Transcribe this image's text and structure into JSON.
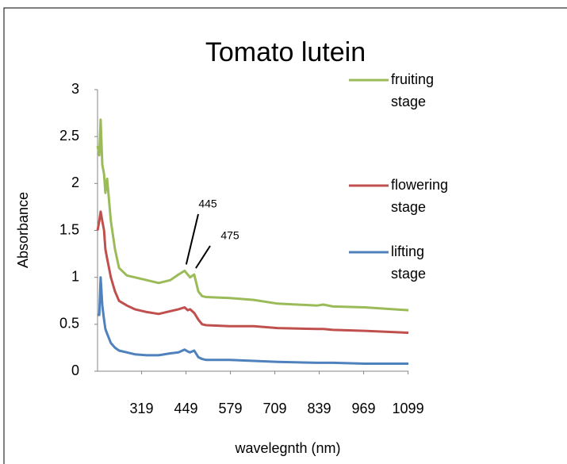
{
  "chart_data": {
    "type": "line",
    "title": "Tomato lutein",
    "x_label": "wavelegnth (nm)",
    "y_label": "Absorbance",
    "x": [
      190,
      195,
      199,
      204,
      209,
      213,
      218,
      229,
      241,
      253,
      276,
      299,
      334,
      369,
      403,
      427,
      445,
      454,
      461,
      473,
      485,
      496,
      508,
      577,
      647,
      717,
      833,
      851,
      879,
      972,
      1100
    ],
    "series": [
      {
        "name": "fruiting stage",
        "color": "#9bbb59",
        "values": [
          2.4,
          2.3,
          2.68,
          2.2,
          2.1,
          1.9,
          2.05,
          1.6,
          1.3,
          1.1,
          1.02,
          1.0,
          0.97,
          0.94,
          0.97,
          1.03,
          1.07,
          1.03,
          1.0,
          1.03,
          0.85,
          0.8,
          0.79,
          0.78,
          0.76,
          0.72,
          0.7,
          0.71,
          0.69,
          0.68,
          0.65
        ]
      },
      {
        "name": "flowering stage",
        "color": "#c0504d",
        "values": [
          1.5,
          1.6,
          1.7,
          1.6,
          1.5,
          1.3,
          1.2,
          1.0,
          0.85,
          0.75,
          0.7,
          0.66,
          0.63,
          0.61,
          0.64,
          0.66,
          0.68,
          0.65,
          0.66,
          0.62,
          0.55,
          0.5,
          0.49,
          0.48,
          0.48,
          0.46,
          0.45,
          0.45,
          0.44,
          0.43,
          0.41
        ]
      },
      {
        "name": "lifting stage",
        "color": "#4f81bd",
        "values": [
          0.6,
          0.6,
          1.0,
          0.7,
          0.55,
          0.45,
          0.4,
          0.3,
          0.25,
          0.22,
          0.2,
          0.18,
          0.17,
          0.17,
          0.19,
          0.2,
          0.23,
          0.21,
          0.2,
          0.22,
          0.15,
          0.13,
          0.12,
          0.12,
          0.11,
          0.1,
          0.09,
          0.09,
          0.09,
          0.08,
          0.08
        ]
      }
    ],
    "annotations": [
      {
        "text": "445",
        "x": 445
      },
      {
        "text": "475",
        "x": 473
      }
    ],
    "xlim": [
      190,
      1100
    ],
    "xticks": [
      319,
      449,
      579,
      709,
      839,
      969,
      1099
    ],
    "ylim": [
      0,
      3
    ],
    "yticks": [
      0,
      0.5,
      1,
      1.5,
      2,
      2.5,
      3
    ],
    "legend": "right"
  }
}
